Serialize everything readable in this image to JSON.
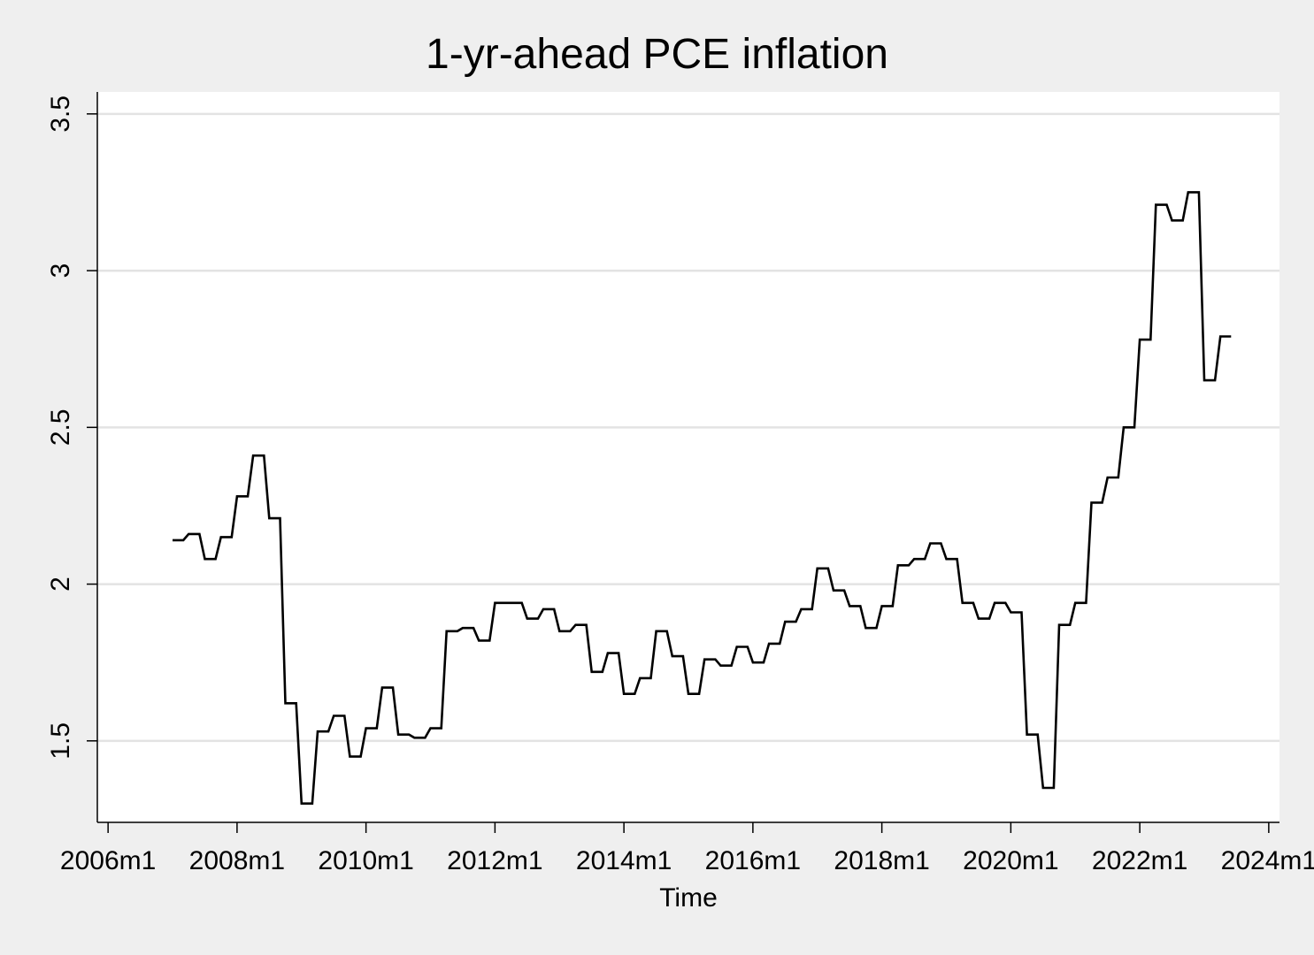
{
  "chart_data": {
    "type": "line",
    "title": "1-yr-ahead PCE inflation",
    "xlabel": "Time",
    "ylabel": "",
    "x_ticks": [
      "2006m1",
      "2008m1",
      "2010m1",
      "2012m1",
      "2014m1",
      "2016m1",
      "2018m1",
      "2020m1",
      "2022m1",
      "2024m1"
    ],
    "y_ticks": [
      "1.5",
      "2",
      "2.5",
      "3",
      "3.5"
    ],
    "xlim": [
      "2005m11",
      "2024m3"
    ],
    "ylim": [
      1.24,
      3.57
    ],
    "grid": true,
    "legend": "none",
    "colors": {
      "background": "#efefef",
      "plot_area": "#ffffff",
      "line": "#000000",
      "grid": "#e3e3e3"
    },
    "series": [
      {
        "x": [
          "2007m1",
          "2007m2",
          "2007m3",
          "2007m4",
          "2007m5",
          "2007m6",
          "2007m7",
          "2007m8",
          "2007m9",
          "2007m10",
          "2007m11",
          "2007m12",
          "2008m1",
          "2008m2",
          "2008m3",
          "2008m4",
          "2008m5",
          "2008m6",
          "2008m7",
          "2008m8",
          "2008m9",
          "2008m10",
          "2008m11",
          "2008m12",
          "2009m1",
          "2009m2",
          "2009m3",
          "2009m4",
          "2009m5",
          "2009m6",
          "2009m7",
          "2009m8",
          "2009m9",
          "2009m10",
          "2009m11",
          "2009m12",
          "2010m1",
          "2010m2",
          "2010m3",
          "2010m4",
          "2010m5",
          "2010m6",
          "2010m7",
          "2010m8",
          "2010m9",
          "2010m10",
          "2010m11",
          "2010m12",
          "2011m1",
          "2011m2",
          "2011m3",
          "2011m4",
          "2011m5",
          "2011m6",
          "2011m7",
          "2011m8",
          "2011m9",
          "2011m10",
          "2011m11",
          "2011m12",
          "2012m1",
          "2012m2",
          "2012m3",
          "2012m4",
          "2012m5",
          "2012m6",
          "2012m7",
          "2012m8",
          "2012m9",
          "2012m10",
          "2012m11",
          "2012m12",
          "2013m1",
          "2013m2",
          "2013m3",
          "2013m4",
          "2013m5",
          "2013m6",
          "2013m7",
          "2013m8",
          "2013m9",
          "2013m10",
          "2013m11",
          "2013m12",
          "2014m1",
          "2014m2",
          "2014m3",
          "2014m4",
          "2014m5",
          "2014m6",
          "2014m7",
          "2014m8",
          "2014m9",
          "2014m10",
          "2014m11",
          "2014m12",
          "2015m1",
          "2015m2",
          "2015m3",
          "2015m4",
          "2015m5",
          "2015m6",
          "2015m7",
          "2015m8",
          "2015m9",
          "2015m10",
          "2015m11",
          "2015m12",
          "2016m1",
          "2016m2",
          "2016m3",
          "2016m4",
          "2016m5",
          "2016m6",
          "2016m7",
          "2016m8",
          "2016m9",
          "2016m10",
          "2016m11",
          "2016m12",
          "2017m1",
          "2017m2",
          "2017m3",
          "2017m4",
          "2017m5",
          "2017m6",
          "2017m7",
          "2017m8",
          "2017m9",
          "2017m10",
          "2017m11",
          "2017m12",
          "2018m1",
          "2018m2",
          "2018m3",
          "2018m4",
          "2018m5",
          "2018m6",
          "2018m7",
          "2018m8",
          "2018m9",
          "2018m10",
          "2018m11",
          "2018m12",
          "2019m1",
          "2019m2",
          "2019m3",
          "2019m4",
          "2019m5",
          "2019m6",
          "2019m7",
          "2019m8",
          "2019m9",
          "2019m10",
          "2019m11",
          "2019m12",
          "2020m1",
          "2020m2",
          "2020m3",
          "2020m4",
          "2020m5",
          "2020m6",
          "2020m7",
          "2020m8",
          "2020m9",
          "2020m10",
          "2020m11",
          "2020m12",
          "2021m1",
          "2021m2",
          "2021m3",
          "2021m4",
          "2021m5",
          "2021m6",
          "2021m7",
          "2021m8",
          "2021m9",
          "2021m10",
          "2021m11",
          "2021m12",
          "2022m1",
          "2022m2",
          "2022m3",
          "2022m4",
          "2022m5",
          "2022m6",
          "2022m7",
          "2022m8",
          "2022m9",
          "2022m10",
          "2022m11",
          "2022m12",
          "2023m1",
          "2023m2",
          "2023m3",
          "2023m4",
          "2023m5",
          "2023m6"
        ],
        "values": [
          2.14,
          2.14,
          2.14,
          2.16,
          2.16,
          2.16,
          2.08,
          2.08,
          2.08,
          2.15,
          2.15,
          2.15,
          2.28,
          2.28,
          2.28,
          2.41,
          2.41,
          2.41,
          2.21,
          2.21,
          2.21,
          1.62,
          1.62,
          1.62,
          1.3,
          1.3,
          1.3,
          1.53,
          1.53,
          1.53,
          1.58,
          1.58,
          1.58,
          1.45,
          1.45,
          1.45,
          1.54,
          1.54,
          1.54,
          1.67,
          1.67,
          1.67,
          1.52,
          1.52,
          1.52,
          1.51,
          1.51,
          1.51,
          1.54,
          1.54,
          1.54,
          1.85,
          1.85,
          1.85,
          1.86,
          1.86,
          1.86,
          1.82,
          1.82,
          1.82,
          1.94,
          1.94,
          1.94,
          1.94,
          1.94,
          1.94,
          1.89,
          1.89,
          1.89,
          1.92,
          1.92,
          1.92,
          1.85,
          1.85,
          1.85,
          1.87,
          1.87,
          1.87,
          1.72,
          1.72,
          1.72,
          1.78,
          1.78,
          1.78,
          1.65,
          1.65,
          1.65,
          1.7,
          1.7,
          1.7,
          1.85,
          1.85,
          1.85,
          1.77,
          1.77,
          1.77,
          1.65,
          1.65,
          1.65,
          1.76,
          1.76,
          1.76,
          1.74,
          1.74,
          1.74,
          1.8,
          1.8,
          1.8,
          1.75,
          1.75,
          1.75,
          1.81,
          1.81,
          1.81,
          1.88,
          1.88,
          1.88,
          1.92,
          1.92,
          1.92,
          2.05,
          2.05,
          2.05,
          1.98,
          1.98,
          1.98,
          1.93,
          1.93,
          1.93,
          1.86,
          1.86,
          1.86,
          1.93,
          1.93,
          1.93,
          2.06,
          2.06,
          2.06,
          2.08,
          2.08,
          2.08,
          2.13,
          2.13,
          2.13,
          2.08,
          2.08,
          2.08,
          1.94,
          1.94,
          1.94,
          1.89,
          1.89,
          1.89,
          1.94,
          1.94,
          1.94,
          1.91,
          1.91,
          1.91,
          1.52,
          1.52,
          1.52,
          1.35,
          1.35,
          1.35,
          1.87,
          1.87,
          1.87,
          1.94,
          1.94,
          1.94,
          2.26,
          2.26,
          2.26,
          2.34,
          2.34,
          2.34,
          2.5,
          2.5,
          2.5,
          2.78,
          2.78,
          2.78,
          3.21,
          3.21,
          3.21,
          3.16,
          3.16,
          3.16,
          3.25,
          3.25,
          3.25,
          2.65,
          2.65,
          2.65,
          2.79,
          2.79,
          2.79
        ]
      }
    ]
  }
}
